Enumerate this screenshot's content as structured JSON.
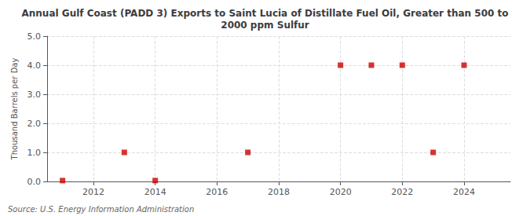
{
  "chart_data": {
    "type": "scatter",
    "title": "Annual Gulf Coast (PADD 3) Exports to Saint Lucia of Distillate Fuel Oil, Greater than 500 to\n2000 ppm Sulfur",
    "ylabel": "Thousand Barrels per Day",
    "annotation": "Source: U.S. Energy Information Administration",
    "x": [
      2011,
      2013,
      2014,
      2017,
      2020,
      2021,
      2022,
      2023,
      2024
    ],
    "values": [
      0.03,
      1.0,
      0.03,
      1.0,
      4.0,
      4.0,
      4.0,
      1.0,
      4.0
    ],
    "color": "#cc0000",
    "marker": "square",
    "xlim": [
      2010.5,
      2025.5
    ],
    "xticks": [
      2012,
      2014,
      2016,
      2018,
      2020,
      2022,
      2024
    ],
    "ylim": [
      0.0,
      5.0
    ],
    "yticks": [
      {
        "value": 0,
        "label": "0.0"
      },
      {
        "value": 1,
        "label": "1.0"
      },
      {
        "value": 2,
        "label": "2.0"
      },
      {
        "value": 3,
        "label": "3.0"
      },
      {
        "value": 4,
        "label": "4.0"
      },
      {
        "value": 5,
        "label": "5.0"
      }
    ],
    "grid": true
  }
}
